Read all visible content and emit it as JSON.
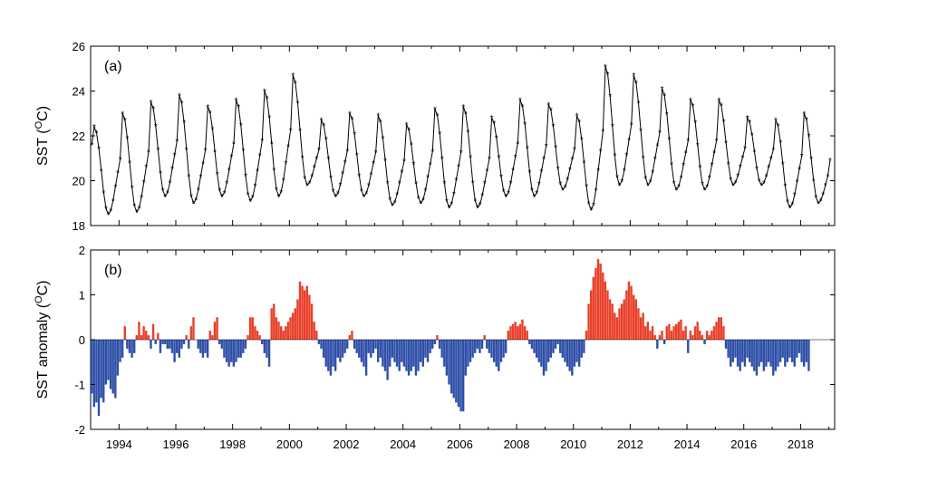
{
  "chart_data": [
    {
      "type": "line",
      "panel_label": "(a)",
      "ylabel_parts": [
        "SST (",
        "O",
        "C)"
      ],
      "xlim": [
        1993.0,
        2019.2
      ],
      "ylim": [
        18,
        26
      ],
      "yticks": [
        18,
        20,
        22,
        24,
        26
      ],
      "marker": "asterisk",
      "line_color": "#000000",
      "grid": false,
      "monthly_start": [
        1993,
        1
      ],
      "years": [
        1993,
        1994,
        1995,
        1996,
        1997,
        1998,
        1999,
        2000,
        2001,
        2002,
        2003,
        2004,
        2005,
        2006,
        2007,
        2008,
        2009,
        2010,
        2011,
        2012,
        2013,
        2014,
        2015,
        2016,
        2017,
        2018
      ],
      "annual_max": [
        22.4,
        23.0,
        23.5,
        23.8,
        23.3,
        23.6,
        24.0,
        24.7,
        22.7,
        23.0,
        22.9,
        22.5,
        23.2,
        23.3,
        22.8,
        23.6,
        23.4,
        22.9,
        25.1,
        24.7,
        24.1,
        23.6,
        23.6,
        22.8,
        22.7,
        23.0
      ],
      "annual_min": [
        18.5,
        18.6,
        19.3,
        19.0,
        19.3,
        19.1,
        19.3,
        19.8,
        19.3,
        19.3,
        18.9,
        19.0,
        18.8,
        18.8,
        19.3,
        19.3,
        19.6,
        18.7,
        19.8,
        19.8,
        19.6,
        19.6,
        19.8,
        19.8,
        18.8,
        19.0
      ],
      "last_value": 20.9
    },
    {
      "type": "bar",
      "panel_label": "(b)",
      "ylabel_parts": [
        "SST anomaly (",
        "O",
        "C)"
      ],
      "xlim": [
        1993.0,
        2019.2
      ],
      "ylim": [
        -2,
        2
      ],
      "yticks": [
        -2,
        -1,
        0,
        1,
        2
      ],
      "xticks": [
        1994,
        1996,
        1998,
        2000,
        2002,
        2004,
        2006,
        2008,
        2010,
        2012,
        2014,
        2016,
        2018
      ],
      "positive_color": "#e8402a",
      "negative_color": "#2f4fa8",
      "monthly_start": [
        1993,
        1
      ],
      "anomalies": [
        -1.2,
        -1.5,
        -1.4,
        -1.7,
        -1.3,
        -1.4,
        -1.0,
        -0.9,
        -1.1,
        -1.2,
        -1.3,
        -0.8,
        -0.5,
        -0.4,
        0.3,
        -0.2,
        -0.3,
        -0.4,
        -0.3,
        0.1,
        0.4,
        0.1,
        0.3,
        0.2,
        0.1,
        -0.2,
        0.35,
        -0.1,
        0.15,
        -0.3,
        -0.1,
        -0.1,
        -0.2,
        -0.2,
        -0.3,
        -0.5,
        -0.3,
        -0.4,
        -0.2,
        -0.1,
        0.1,
        -0.2,
        0.3,
        0.5,
        0.0,
        -0.2,
        -0.3,
        -0.4,
        -0.3,
        -0.4,
        0.2,
        0.1,
        0.4,
        0.5,
        -0.1,
        -0.2,
        -0.4,
        -0.5,
        -0.6,
        -0.5,
        -0.6,
        -0.5,
        -0.4,
        -0.4,
        -0.3,
        -0.2,
        0.1,
        0.5,
        0.5,
        0.3,
        0.2,
        0.1,
        -0.1,
        -0.3,
        -0.4,
        -0.6,
        0.7,
        0.8,
        0.5,
        0.4,
        0.3,
        0.2,
        0.3,
        0.4,
        0.5,
        0.6,
        0.7,
        0.9,
        1.3,
        1.2,
        1.1,
        1.2,
        1.0,
        0.8,
        0.4,
        0.2,
        -0.1,
        -0.2,
        -0.4,
        -0.6,
        -0.7,
        -0.8,
        -0.6,
        -0.7,
        -0.4,
        -0.5,
        -0.4,
        -0.3,
        -0.2,
        0.1,
        0.2,
        -0.2,
        -0.3,
        -0.4,
        -0.5,
        -0.6,
        -0.8,
        -0.3,
        -0.4,
        -0.3,
        -0.2,
        -0.5,
        -0.4,
        -0.6,
        -0.7,
        -0.9,
        -0.6,
        -0.4,
        -0.5,
        -0.6,
        -0.7,
        -0.5,
        -0.6,
        -0.7,
        -0.8,
        -0.7,
        -0.6,
        -0.8,
        -0.7,
        -0.5,
        -0.6,
        -0.4,
        -0.5,
        -0.3,
        -0.2,
        -0.1,
        0.1,
        -0.2,
        -0.4,
        -0.6,
        -0.8,
        -1.0,
        -1.2,
        -1.3,
        -1.4,
        -1.5,
        -1.6,
        -1.6,
        -0.8,
        -0.6,
        -0.5,
        -0.4,
        -0.3,
        -0.2,
        -0.3,
        -0.2,
        0.1,
        -0.2,
        -0.3,
        -0.4,
        -0.5,
        -0.6,
        -0.7,
        -0.5,
        -0.4,
        -0.3,
        0.2,
        0.3,
        0.35,
        0.4,
        0.3,
        0.35,
        0.45,
        0.3,
        0.2,
        -0.1,
        -0.2,
        -0.3,
        -0.4,
        -0.5,
        -0.6,
        -0.8,
        -0.7,
        -0.5,
        -0.4,
        -0.3,
        -0.2,
        -0.1,
        -0.3,
        -0.4,
        -0.5,
        -0.6,
        -0.7,
        -0.8,
        -0.6,
        -0.5,
        -0.6,
        -0.4,
        -0.3,
        0.2,
        0.8,
        1.1,
        1.4,
        1.6,
        1.8,
        1.7,
        1.5,
        1.3,
        1.1,
        0.9,
        0.8,
        0.6,
        0.5,
        0.7,
        0.8,
        0.9,
        1.1,
        1.3,
        1.2,
        1.0,
        0.9,
        0.7,
        0.5,
        0.6,
        0.3,
        0.4,
        0.2,
        0.3,
        0.1,
        -0.2,
        0.1,
        0.2,
        -0.1,
        0.3,
        0.35,
        0.2,
        0.3,
        0.35,
        0.4,
        0.45,
        0.2,
        0.3,
        -0.3,
        0.2,
        0.1,
        0.3,
        0.4,
        0.2,
        0.1,
        -0.1,
        0.2,
        0.1,
        0.2,
        0.3,
        0.4,
        0.5,
        0.5,
        0.3,
        -0.2,
        -0.4,
        -0.6,
        -0.5,
        -0.4,
        -0.6,
        -0.7,
        -0.5,
        -0.6,
        -0.4,
        -0.5,
        -0.6,
        -0.7,
        -0.8,
        -0.6,
        -0.5,
        -0.7,
        -0.6,
        -0.5,
        -0.6,
        -0.8,
        -0.7,
        -0.6,
        -0.5,
        -0.4,
        -0.6,
        -0.5,
        -0.4,
        -0.5,
        -0.6,
        -0.4,
        -0.3,
        -0.5,
        -0.6,
        -0.5,
        -0.7
      ]
    }
  ]
}
